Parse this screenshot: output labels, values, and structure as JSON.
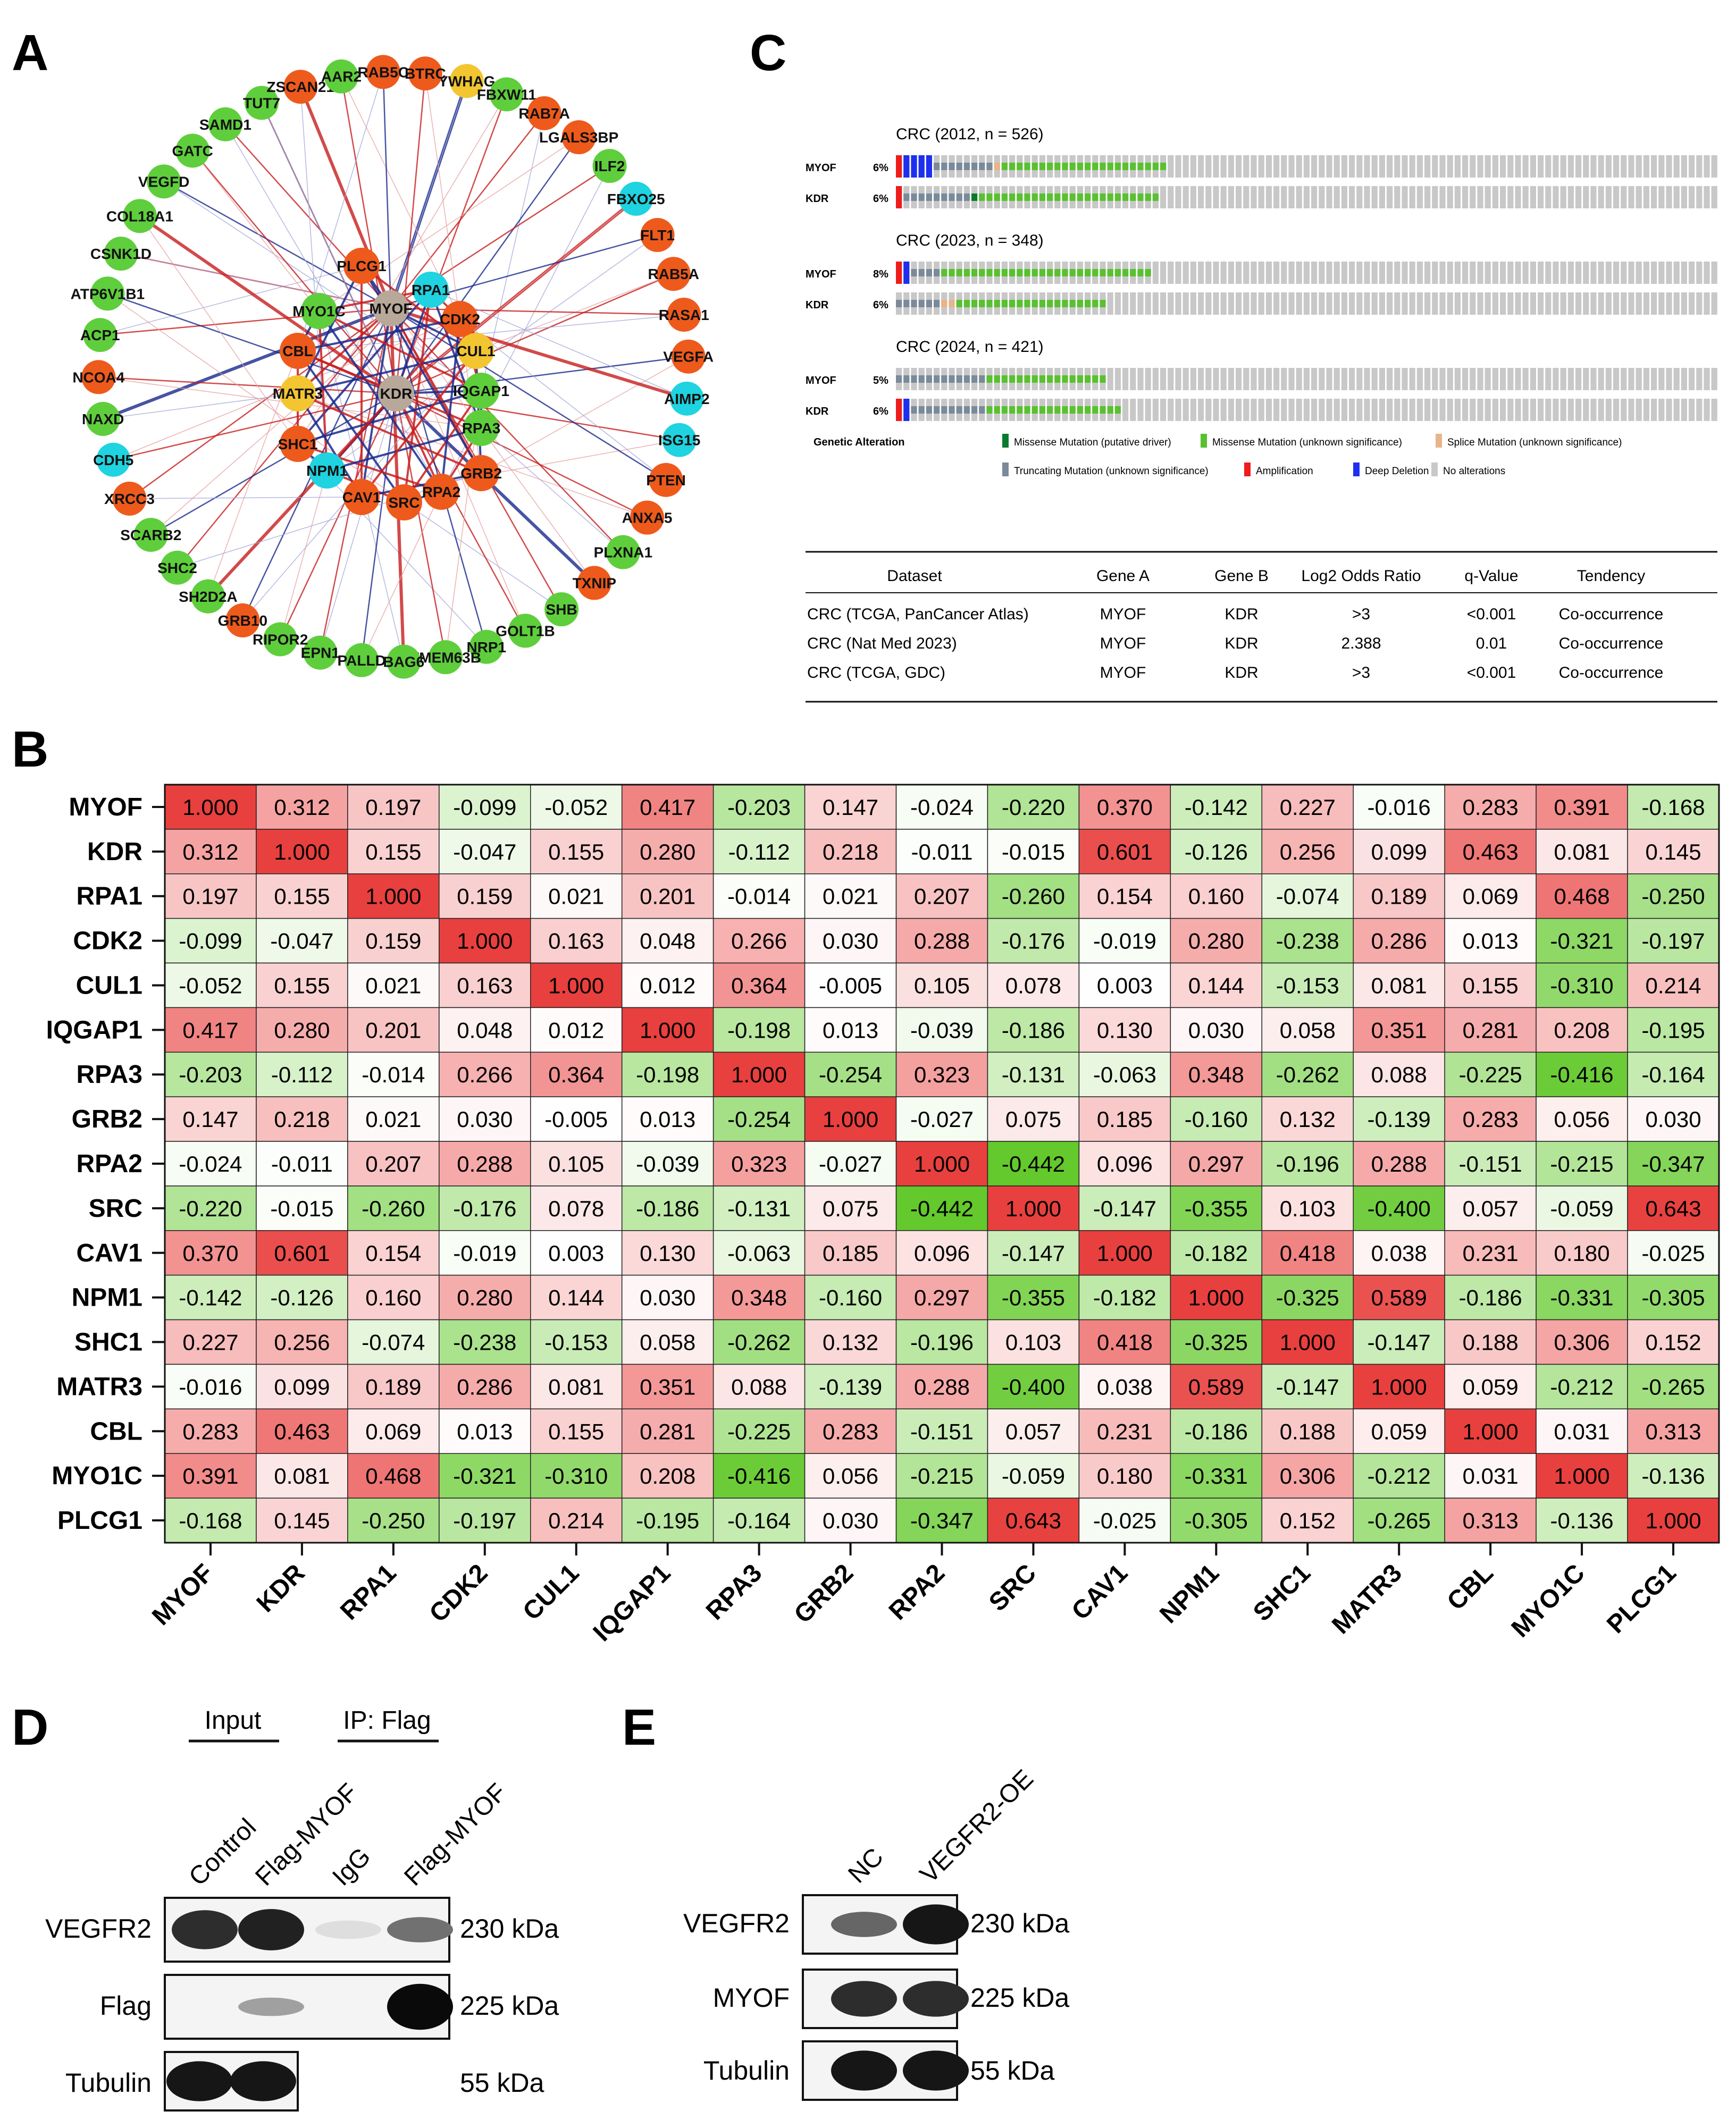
{
  "figure": {
    "panel_labels": [
      "A",
      "B",
      "C",
      "D",
      "E"
    ]
  },
  "panel_a": {
    "center_nodes": [
      {
        "name": "MYOF",
        "color": "#b8a89a"
      },
      {
        "name": "KDR",
        "color": "#b8a89a"
      },
      {
        "name": "RPA1",
        "color": "#1fd3e0"
      },
      {
        "name": "PLCG1",
        "color": "#ee5a1c"
      },
      {
        "name": "MYO1C",
        "color": "#5fce3c"
      },
      {
        "name": "CBL",
        "color": "#ee5a1c"
      },
      {
        "name": "MATR3",
        "color": "#f2c531"
      },
      {
        "name": "SHC1",
        "color": "#ee5a1c"
      },
      {
        "name": "NPM1",
        "color": "#1fd3e0"
      },
      {
        "name": "CAV1",
        "color": "#ee5a1c"
      },
      {
        "name": "SRC",
        "color": "#ee5a1c"
      },
      {
        "name": "RPA2",
        "color": "#ee5a1c"
      },
      {
        "name": "GRB2",
        "color": "#ee5a1c"
      },
      {
        "name": "RPA3",
        "color": "#5fce3c"
      },
      {
        "name": "IQGAP1",
        "color": "#5fce3c"
      },
      {
        "name": "CUL1",
        "color": "#f2c531"
      },
      {
        "name": "CDK2",
        "color": "#ee5a1c"
      }
    ],
    "ring_nodes": [
      {
        "name": "YWHAG",
        "color": "#f2c531"
      },
      {
        "name": "FBXW11",
        "color": "#5fce3c"
      },
      {
        "name": "RAB7A",
        "color": "#ee5a1c"
      },
      {
        "name": "LGALS3BP",
        "color": "#ee5a1c"
      },
      {
        "name": "ILF2",
        "color": "#5fce3c"
      },
      {
        "name": "FBXO25",
        "color": "#1fd3e0"
      },
      {
        "name": "FLT1",
        "color": "#ee5a1c"
      },
      {
        "name": "RAB5A",
        "color": "#ee5a1c"
      },
      {
        "name": "RASA1",
        "color": "#ee5a1c"
      },
      {
        "name": "VEGFA",
        "color": "#ee5a1c"
      },
      {
        "name": "AIMP2",
        "color": "#1fd3e0"
      },
      {
        "name": "ISG15",
        "color": "#1fd3e0"
      },
      {
        "name": "PTEN",
        "color": "#ee5a1c"
      },
      {
        "name": "ANXA5",
        "color": "#ee5a1c"
      },
      {
        "name": "PLXNA1",
        "color": "#5fce3c"
      },
      {
        "name": "TXNIP",
        "color": "#ee5a1c"
      },
      {
        "name": "SHB",
        "color": "#5fce3c"
      },
      {
        "name": "GOLT1B",
        "color": "#5fce3c"
      },
      {
        "name": "NRP1",
        "color": "#5fce3c"
      },
      {
        "name": "TMEM63B",
        "color": "#5fce3c"
      },
      {
        "name": "BAG6",
        "color": "#5fce3c"
      },
      {
        "name": "PALLD",
        "color": "#5fce3c"
      },
      {
        "name": "EPN1",
        "color": "#5fce3c"
      },
      {
        "name": "RIPOR2",
        "color": "#5fce3c"
      },
      {
        "name": "GRB10",
        "color": "#ee5a1c"
      },
      {
        "name": "SH2D2A",
        "color": "#5fce3c"
      },
      {
        "name": "SHC2",
        "color": "#5fce3c"
      },
      {
        "name": "SCARB2",
        "color": "#5fce3c"
      },
      {
        "name": "XRCC3",
        "color": "#ee5a1c"
      },
      {
        "name": "CDH5",
        "color": "#1fd3e0"
      },
      {
        "name": "NAXD",
        "color": "#5fce3c"
      },
      {
        "name": "NCOA4",
        "color": "#ee5a1c"
      },
      {
        "name": "ACP1",
        "color": "#5fce3c"
      },
      {
        "name": "ATP6V1B1",
        "color": "#5fce3c"
      },
      {
        "name": "CSNK1D",
        "color": "#5fce3c"
      },
      {
        "name": "COL18A1",
        "color": "#5fce3c"
      },
      {
        "name": "VEGFD",
        "color": "#5fce3c"
      },
      {
        "name": "GATC",
        "color": "#5fce3c"
      },
      {
        "name": "SAMD1",
        "color": "#5fce3c"
      },
      {
        "name": "TUT7",
        "color": "#5fce3c"
      },
      {
        "name": "ZSCAN21",
        "color": "#ee5a1c"
      },
      {
        "name": "AAR2",
        "color": "#5fce3c"
      },
      {
        "name": "RAB5C",
        "color": "#ee5a1c"
      },
      {
        "name": "BTRC",
        "color": "#ee5a1c"
      }
    ]
  },
  "panel_b": {
    "chart_data": {
      "type": "heatmap",
      "title": "",
      "genes": [
        "MYOF",
        "KDR",
        "RPA1",
        "CDK2",
        "CUL1",
        "IQGAP1",
        "RPA3",
        "GRB2",
        "RPA2",
        "SRC",
        "CAV1",
        "NPM1",
        "SHC1",
        "MATR3",
        "CBL",
        "MYO1C",
        "PLCG1"
      ],
      "values": [
        [
          "1.000",
          "0.312",
          "0.197",
          "-0.099",
          "-0.052",
          "0.417",
          "-0.203",
          "0.147",
          "-0.024",
          "-0.220",
          "0.370",
          "-0.142",
          "0.227",
          "-0.016",
          "0.283",
          "0.391",
          "-0.168"
        ],
        [
          "0.312",
          "1.000",
          "0.155",
          "-0.047",
          "0.155",
          "0.280",
          "-0.112",
          "0.218",
          "-0.011",
          "-0.015",
          "0.601",
          "-0.126",
          "0.256",
          "0.099",
          "0.463",
          "0.081",
          "0.145"
        ],
        [
          "0.197",
          "0.155",
          "1.000",
          "0.159",
          "0.021",
          "0.201",
          "-0.014",
          "0.021",
          "0.207",
          "-0.260",
          "0.154",
          "0.160",
          "-0.074",
          "0.189",
          "0.069",
          "0.468",
          "-0.250"
        ],
        [
          "-0.099",
          "-0.047",
          "0.159",
          "1.000",
          "0.163",
          "0.048",
          "0.266",
          "0.030",
          "0.288",
          "-0.176",
          "-0.019",
          "0.280",
          "-0.238",
          "0.286",
          "0.013",
          "-0.321",
          "-0.197"
        ],
        [
          "-0.052",
          "0.155",
          "0.021",
          "0.163",
          "1.000",
          "0.012",
          "0.364",
          "-0.005",
          "0.105",
          "0.078",
          "0.003",
          "0.144",
          "-0.153",
          "0.081",
          "0.155",
          "-0.310",
          "0.214"
        ],
        [
          "0.417",
          "0.280",
          "0.201",
          "0.048",
          "0.012",
          "1.000",
          "-0.198",
          "0.013",
          "-0.039",
          "-0.186",
          "0.130",
          "0.030",
          "0.058",
          "0.351",
          "0.281",
          "0.208",
          "-0.195"
        ],
        [
          "-0.203",
          "-0.112",
          "-0.014",
          "0.266",
          "0.364",
          "-0.198",
          "1.000",
          "-0.254",
          "0.323",
          "-0.131",
          "-0.063",
          "0.348",
          "-0.262",
          "0.088",
          "-0.225",
          "-0.416",
          "-0.164"
        ],
        [
          "0.147",
          "0.218",
          "0.021",
          "0.030",
          "-0.005",
          "0.013",
          "-0.254",
          "1.000",
          "-0.027",
          "0.075",
          "0.185",
          "-0.160",
          "0.132",
          "-0.139",
          "0.283",
          "0.056",
          "0.030"
        ],
        [
          "-0.024",
          "-0.011",
          "0.207",
          "0.288",
          "0.105",
          "-0.039",
          "0.323",
          "-0.027",
          "1.000",
          "-0.442",
          "0.096",
          "0.297",
          "-0.196",
          "0.288",
          "-0.151",
          "-0.215",
          "-0.347"
        ],
        [
          "-0.220",
          "-0.015",
          "-0.260",
          "-0.176",
          "0.078",
          "-0.186",
          "-0.131",
          "0.075",
          "-0.442",
          "1.000",
          "-0.147",
          "-0.355",
          "0.103",
          "-0.400",
          "0.057",
          "-0.059",
          "0.643"
        ],
        [
          "0.370",
          "0.601",
          "0.154",
          "-0.019",
          "0.003",
          "0.130",
          "-0.063",
          "0.185",
          "0.096",
          "-0.147",
          "1.000",
          "-0.182",
          "0.418",
          "0.038",
          "0.231",
          "0.180",
          "-0.025"
        ],
        [
          "-0.142",
          "-0.126",
          "0.160",
          "0.280",
          "0.144",
          "0.030",
          "0.348",
          "-0.160",
          "0.297",
          "-0.355",
          "-0.182",
          "1.000",
          "-0.325",
          "0.589",
          "-0.186",
          "-0.331",
          "-0.305"
        ],
        [
          "0.227",
          "0.256",
          "-0.074",
          "-0.238",
          "-0.153",
          "0.058",
          "-0.262",
          "0.132",
          "-0.196",
          "0.103",
          "0.418",
          "-0.325",
          "1.000",
          "-0.147",
          "0.188",
          "0.306",
          "0.152"
        ],
        [
          "-0.016",
          "0.099",
          "0.189",
          "0.286",
          "0.081",
          "0.351",
          "0.088",
          "-0.139",
          "0.288",
          "-0.400",
          "0.038",
          "0.589",
          "-0.147",
          "1.000",
          "0.059",
          "-0.212",
          "-0.265"
        ],
        [
          "0.283",
          "0.463",
          "0.069",
          "0.013",
          "0.155",
          "0.281",
          "-0.225",
          "0.283",
          "-0.151",
          "0.057",
          "0.231",
          "-0.186",
          "0.188",
          "0.059",
          "1.000",
          "0.031",
          "0.313"
        ],
        [
          "0.391",
          "0.081",
          "0.468",
          "-0.321",
          "-0.310",
          "0.208",
          "-0.416",
          "0.056",
          "-0.215",
          "-0.059",
          "0.180",
          "-0.331",
          "0.306",
          "-0.212",
          "0.031",
          "1.000",
          "-0.136"
        ],
        [
          "-0.168",
          "0.145",
          "-0.250",
          "-0.197",
          "0.214",
          "-0.195",
          "-0.164",
          "0.030",
          "-0.347",
          "0.643",
          "-0.025",
          "-0.305",
          "0.152",
          "-0.265",
          "0.313",
          "-0.136",
          "1.000"
        ]
      ]
    }
  },
  "panel_c": {
    "datasets": [
      {
        "title": "CRC (2012, n = 526)",
        "rows": [
          {
            "gene": "MYOF",
            "pct": "6%",
            "amp": 1,
            "del": 4,
            "trunc": 8,
            "splice": 1,
            "miss": 22,
            "drv": 0,
            "amp_pos": 0,
            "del_pos": 1
          },
          {
            "gene": "KDR",
            "pct": "6%",
            "amp": 1,
            "del": 0,
            "trunc": 9,
            "splice": 0,
            "miss": 24,
            "drv": 1,
            "amp_pos": 0,
            "del_pos": 0
          }
        ]
      },
      {
        "title": "CRC (2023, n = 348)",
        "rows": [
          {
            "gene": "MYOF",
            "pct": "8%",
            "amp": 1,
            "del": 1,
            "trunc": 4,
            "splice": 0,
            "miss": 28,
            "drv": 0,
            "amp_pos": 0,
            "del_pos": 1
          },
          {
            "gene": "KDR",
            "pct": "6%",
            "amp": 0,
            "del": 0,
            "trunc": 6,
            "splice": 2,
            "miss": 20,
            "drv": 0,
            "amp_pos": 0,
            "del_pos": 0
          }
        ]
      },
      {
        "title": "CRC (2024, n = 421)",
        "rows": [
          {
            "gene": "MYOF",
            "pct": "5%",
            "amp": 0,
            "del": 0,
            "trunc": 12,
            "splice": 0,
            "miss": 16,
            "drv": 0,
            "amp_pos": 0,
            "del_pos": 0
          },
          {
            "gene": "KDR",
            "pct": "6%",
            "amp": 1,
            "del": 1,
            "trunc": 10,
            "splice": 0,
            "miss": 18,
            "drv": 0,
            "amp_pos": 0,
            "del_pos": 0
          }
        ]
      }
    ],
    "legend": {
      "title": "Genetic Alteration",
      "items": [
        {
          "label": "Missense Mutation (putative driver)",
          "color": "#0b7a2c"
        },
        {
          "label": "Missense Mutation (unknown significance)",
          "color": "#58c12f"
        },
        {
          "label": "Splice Mutation (unknown significance)",
          "color": "#e8b48a"
        },
        {
          "label": "Truncating Mutation (unknown significance)",
          "color": "#7a8a9a"
        },
        {
          "label": "Amplification",
          "color": "#ee1c1c"
        },
        {
          "label": "Deep Deletion",
          "color": "#1f2ff0"
        },
        {
          "label": "No alterations",
          "color": "#c8c8c8"
        }
      ]
    },
    "table": {
      "headers": [
        "Dataset",
        "Gene A",
        "Gene B",
        "Log2 Odds Ratio",
        "q-Value",
        "Tendency"
      ],
      "rows": [
        [
          "CRC (TCGA, PanCancer Atlas)",
          "MYOF",
          "KDR",
          ">3",
          "<0.001",
          "Co-occurrence"
        ],
        [
          "CRC (Nat Med 2023)",
          "MYOF",
          "KDR",
          "2.388",
          "0.01",
          "Co-occurrence"
        ],
        [
          "CRC (TCGA, GDC)",
          "MYOF",
          "KDR",
          ">3",
          "<0.001",
          "Co-occurrence"
        ]
      ]
    }
  },
  "panel_d": {
    "group_labels": [
      "Input",
      "IP: Flag"
    ],
    "lane_labels": [
      "Control",
      "Flag-MYOF",
      "IgG",
      "Flag-MYOF"
    ],
    "rows": [
      {
        "label": "VEGFR2",
        "size": "230 kDa",
        "intensity": [
          0.85,
          0.9,
          0.08,
          0.55
        ]
      },
      {
        "label": "Flag",
        "size": "225 kDa",
        "intensity": [
          0.0,
          0.35,
          0.0,
          1.0
        ]
      },
      {
        "label": "Tubulin",
        "size": "55 kDa",
        "intensity": [
          0.95,
          0.95
        ]
      }
    ]
  },
  "panel_e": {
    "lane_labels": [
      "NC",
      "VEGFR2-OE"
    ],
    "rows": [
      {
        "label": "VEGFR2",
        "size": "230 kDa",
        "intensity": [
          0.6,
          0.95
        ]
      },
      {
        "label": "MYOF",
        "size": "225 kDa",
        "intensity": [
          0.85,
          0.85
        ]
      },
      {
        "label": "Tubulin",
        "size": "55 kDa",
        "intensity": [
          0.95,
          0.95
        ]
      }
    ]
  }
}
